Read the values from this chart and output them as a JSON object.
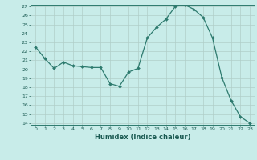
{
  "x": [
    0,
    1,
    2,
    3,
    4,
    5,
    6,
    7,
    8,
    9,
    10,
    11,
    12,
    13,
    14,
    15,
    16,
    17,
    18,
    19,
    20,
    21,
    22,
    23
  ],
  "y": [
    22.5,
    21.2,
    20.1,
    20.8,
    20.4,
    20.3,
    20.2,
    20.2,
    18.4,
    18.1,
    19.7,
    20.1,
    23.5,
    24.7,
    25.6,
    27.0,
    27.2,
    26.7,
    25.8,
    23.5,
    19.1,
    16.5,
    14.7,
    14.0
  ],
  "line_color": "#2d7a6e",
  "marker_color": "#2d7a6e",
  "bg_color": "#c8ece9",
  "grid_color": "#b0cec9",
  "xlabel": "Humidex (Indice chaleur)",
  "xlim": [
    -0.5,
    23.5
  ],
  "ylim": [
    13.8,
    27.2
  ],
  "yticks": [
    14,
    15,
    16,
    17,
    18,
    19,
    20,
    21,
    22,
    23,
    24,
    25,
    26,
    27
  ],
  "xticks": [
    0,
    1,
    2,
    3,
    4,
    5,
    6,
    7,
    8,
    9,
    10,
    11,
    12,
    13,
    14,
    15,
    16,
    17,
    18,
    19,
    20,
    21,
    22,
    23
  ]
}
